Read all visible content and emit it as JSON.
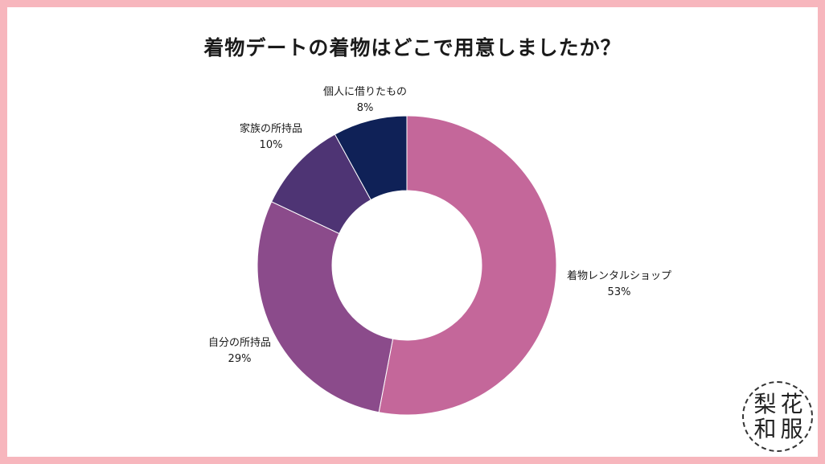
{
  "chart_data": {
    "type": "pie",
    "donut": true,
    "title": "着物デートの着物はどこで用意しましたか？",
    "slices": [
      {
        "label": "着物レンタルショップ",
        "value": 53,
        "value_label": "53%",
        "color": "#c4679a"
      },
      {
        "label": "自分の所持品",
        "value": 29,
        "value_label": "29%",
        "color": "#8b4b8b"
      },
      {
        "label": "家族の所持品",
        "value": 10,
        "value_label": "10%",
        "color": "#4e3474"
      },
      {
        "label": "個人に借りたもの",
        "value": 8,
        "value_label": "8%",
        "color": "#0f2157"
      }
    ],
    "start_angle_deg": 0,
    "direction": "clockwise"
  },
  "logo": {
    "chars": [
      "梨",
      "花",
      "和",
      "服"
    ]
  },
  "colors": {
    "border": "#f7b6bd",
    "background": "#ffffff"
  }
}
